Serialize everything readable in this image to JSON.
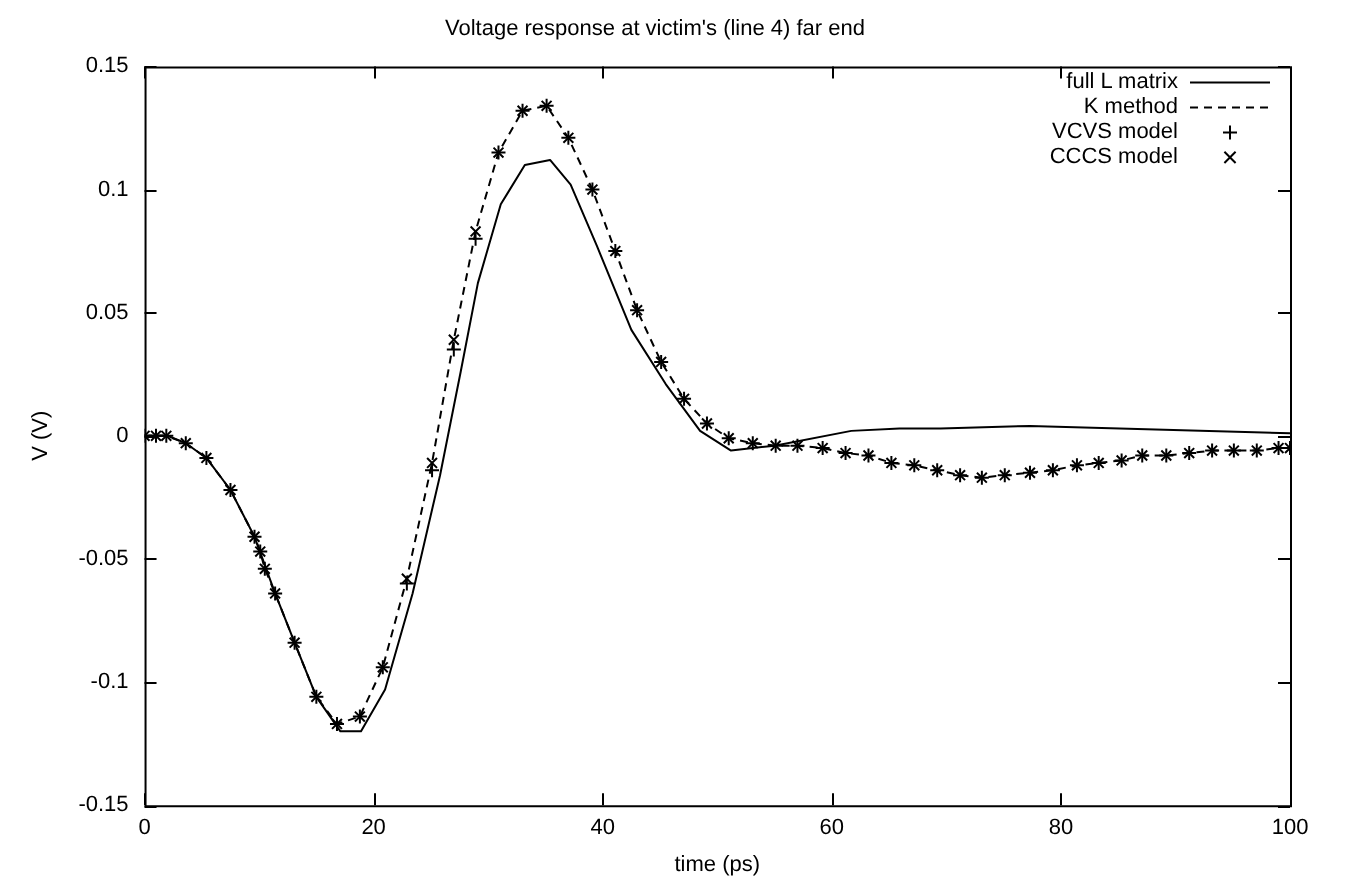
{
  "chart_data": {
    "type": "line",
    "title": "Voltage response at victim's (line 4) far end",
    "xlabel": "time (ps)",
    "ylabel": "V (V)",
    "xlim": [
      0,
      100
    ],
    "xticks": [
      0,
      20,
      40,
      60,
      80,
      100
    ],
    "ylim": [
      -0.15,
      0.15
    ],
    "yticks": [
      -0.15,
      -0.1,
      -0.05,
      0,
      0.05,
      0.1,
      0.15
    ],
    "grid": false,
    "legend": "top right",
    "series": [
      {
        "name": "full L matrix",
        "color": "#000000",
        "line_style": "solid",
        "marker": "none",
        "x": [
          0,
          2,
          3.6,
          5.4,
          7.5,
          9.6,
          11.4,
          13.1,
          15,
          17.1,
          18.9,
          21,
          23.4,
          25.8,
          27.6,
          29.1,
          31.1,
          33.2,
          35.4,
          37.2,
          39.5,
          42.5,
          45.5,
          48.5,
          51.2,
          55,
          61.7,
          65.9,
          69.5,
          77.3,
          100
        ],
        "values": [
          0,
          0,
          -0.003,
          -0.009,
          -0.022,
          -0.041,
          -0.064,
          -0.084,
          -0.106,
          -0.12,
          -0.12,
          -0.103,
          -0.064,
          -0.016,
          0.026,
          0.062,
          0.094,
          0.11,
          0.112,
          0.102,
          0.077,
          0.043,
          0.021,
          0.002,
          -0.006,
          -0.004,
          0.002,
          0.003,
          0.003,
          0.004,
          0.001
        ]
      },
      {
        "name": "K method",
        "type": "line",
        "color": "#000000",
        "line_style": "dashed",
        "marker": "none",
        "x": [
          0,
          1,
          1.9,
          3.6,
          5.4,
          7.5,
          9.6,
          10.1,
          10.5,
          11.4,
          13.1,
          15,
          16.8,
          18.8,
          20.8,
          22.9,
          25.1,
          27,
          28.9,
          30.9,
          33,
          35.1,
          37,
          39.1,
          41.1,
          43,
          45.1,
          47.1,
          49.1,
          51,
          53.1,
          55.1,
          57,
          59.2,
          61.2,
          63.2,
          65.2,
          67.2,
          69.2,
          71.2,
          73.1,
          75.1,
          77.3,
          79.3,
          81.4,
          83.3,
          85.3,
          87.1,
          89.2,
          91.2,
          93.2,
          95.1,
          97.1,
          99,
          100
        ],
        "values": [
          0,
          0,
          0,
          -0.003,
          -0.009,
          -0.022,
          -0.041,
          -0.047,
          -0.054,
          -0.064,
          -0.084,
          -0.106,
          -0.117,
          -0.114,
          -0.094,
          -0.058,
          -0.011,
          0.039,
          0.083,
          0.115,
          0.132,
          0.134,
          0.121,
          0.1,
          0.075,
          0.051,
          0.03,
          0.015,
          0.005,
          -0.001,
          -0.003,
          -0.004,
          -0.004,
          -0.005,
          -0.007,
          -0.008,
          -0.011,
          -0.012,
          -0.014,
          -0.016,
          -0.017,
          -0.016,
          -0.015,
          -0.014,
          -0.012,
          -0.011,
          -0.01,
          -0.008,
          -0.008,
          -0.007,
          -0.006,
          -0.006,
          -0.006,
          -0.005,
          -0.005
        ]
      },
      {
        "name": "VCVS model",
        "type": "scatter",
        "color": "#000000",
        "marker": "plus",
        "x": [
          0,
          1,
          1.9,
          3.6,
          5.4,
          7.5,
          9.6,
          10.1,
          10.5,
          11.4,
          13.1,
          15,
          16.8,
          18.8,
          20.8,
          22.9,
          25.1,
          27,
          28.9,
          30.9,
          33,
          35.1,
          37,
          39.1,
          41.1,
          43,
          45.1,
          47.1,
          49.1,
          51,
          53.1,
          55.1,
          57,
          59.2,
          61.2,
          63.2,
          65.2,
          67.2,
          69.2,
          71.2,
          73.1,
          75.1,
          77.3,
          79.3,
          81.4,
          83.3,
          85.3,
          87.1,
          89.2,
          91.2,
          93.2,
          95.1,
          97.1,
          99,
          100
        ],
        "values": [
          0,
          0,
          0,
          -0.003,
          -0.009,
          -0.022,
          -0.041,
          -0.047,
          -0.054,
          -0.064,
          -0.084,
          -0.106,
          -0.117,
          -0.114,
          -0.094,
          -0.06,
          -0.014,
          0.035,
          0.08,
          0.115,
          0.132,
          0.134,
          0.121,
          0.1,
          0.075,
          0.051,
          0.03,
          0.015,
          0.005,
          -0.001,
          -0.003,
          -0.004,
          -0.004,
          -0.005,
          -0.007,
          -0.008,
          -0.011,
          -0.012,
          -0.014,
          -0.016,
          -0.017,
          -0.016,
          -0.015,
          -0.014,
          -0.012,
          -0.011,
          -0.01,
          -0.008,
          -0.008,
          -0.007,
          -0.006,
          -0.006,
          -0.006,
          -0.005,
          -0.005
        ]
      },
      {
        "name": "CCCS model",
        "type": "scatter",
        "color": "#000000",
        "marker": "cross",
        "x": [
          0,
          1,
          1.9,
          3.6,
          5.4,
          7.5,
          9.6,
          10.1,
          10.5,
          11.4,
          13.1,
          15,
          16.8,
          18.8,
          20.8,
          22.9,
          25.1,
          27,
          28.9,
          30.9,
          33,
          35.1,
          37,
          39.1,
          41.1,
          43,
          45.1,
          47.1,
          49.1,
          51,
          53.1,
          55.1,
          57,
          59.2,
          61.2,
          63.2,
          65.2,
          67.2,
          69.2,
          71.2,
          73.1,
          75.1,
          77.3,
          79.3,
          81.4,
          83.3,
          85.3,
          87.1,
          89.2,
          91.2,
          93.2,
          95.1,
          97.1,
          99,
          100
        ],
        "values": [
          0,
          0,
          0,
          -0.003,
          -0.009,
          -0.022,
          -0.041,
          -0.047,
          -0.054,
          -0.064,
          -0.084,
          -0.106,
          -0.117,
          -0.114,
          -0.094,
          -0.058,
          -0.011,
          0.039,
          0.083,
          0.115,
          0.132,
          0.134,
          0.121,
          0.1,
          0.075,
          0.051,
          0.03,
          0.015,
          0.005,
          -0.001,
          -0.003,
          -0.004,
          -0.004,
          -0.005,
          -0.007,
          -0.008,
          -0.011,
          -0.012,
          -0.014,
          -0.016,
          -0.017,
          -0.016,
          -0.015,
          -0.014,
          -0.012,
          -0.011,
          -0.01,
          -0.008,
          -0.008,
          -0.007,
          -0.006,
          -0.006,
          -0.006,
          -0.005,
          -0.005
        ]
      }
    ]
  }
}
